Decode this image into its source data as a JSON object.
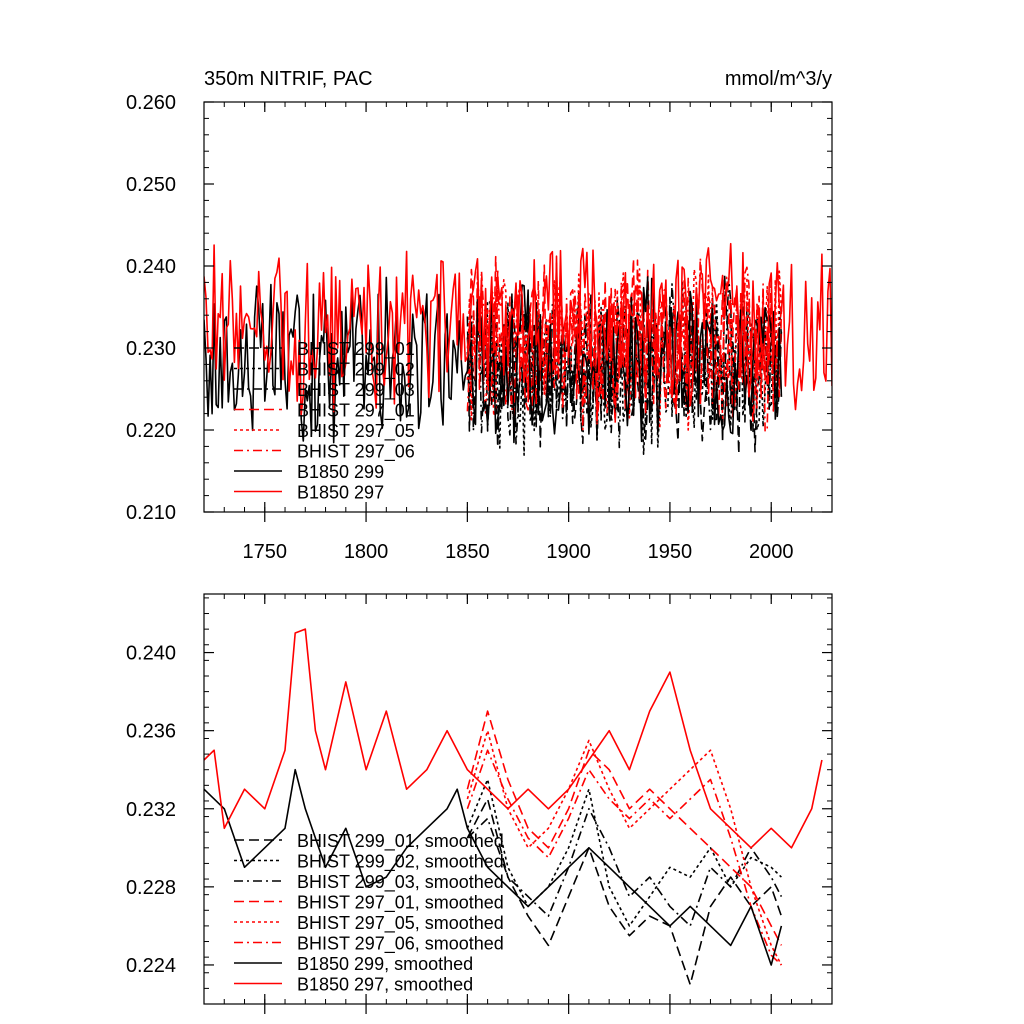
{
  "chart_data": [
    {
      "type": "line",
      "title": "350m NITRIF, PAC",
      "units": "mmol/m^3/y",
      "xlim": [
        1720,
        2030
      ],
      "ylim": [
        0.21,
        0.26
      ],
      "xticks": [
        1750,
        1800,
        1850,
        1900,
        1950,
        2000
      ],
      "xtick_labels": [
        "1750",
        "1800",
        "1850",
        "1900",
        "1950",
        "2000"
      ],
      "yticks": [
        0.21,
        0.22,
        0.23,
        0.24,
        0.25,
        0.26
      ],
      "ytick_labels": [
        "0.210",
        "0.220",
        "0.230",
        "0.240",
        "0.250",
        "0.260"
      ],
      "legend_position": "lower-left",
      "series": [
        {
          "name": "BHIST 299_01",
          "color": "#000000",
          "dash": "long-dash",
          "start": 1850,
          "end": 2005,
          "mean": 0.228,
          "amp": 0.0085,
          "seed": 11
        },
        {
          "name": "BHIST 299_02",
          "color": "#000000",
          "dash": "dot",
          "start": 1850,
          "end": 2005,
          "mean": 0.2275,
          "amp": 0.0085,
          "seed": 12
        },
        {
          "name": "BHIST 299_03",
          "color": "#000000",
          "dash": "dash-dot",
          "start": 1850,
          "end": 2005,
          "mean": 0.228,
          "amp": 0.0085,
          "seed": 13
        },
        {
          "name": "BHIST 297_01",
          "color": "#ff0000",
          "dash": "long-dash",
          "start": 1850,
          "end": 2005,
          "mean": 0.2305,
          "amp": 0.0085,
          "seed": 14
        },
        {
          "name": "BHIST 297_05",
          "color": "#ff0000",
          "dash": "dot",
          "start": 1850,
          "end": 2005,
          "mean": 0.2305,
          "amp": 0.0085,
          "seed": 15
        },
        {
          "name": "BHIST 297_06",
          "color": "#ff0000",
          "dash": "dash-dot",
          "start": 1850,
          "end": 2005,
          "mean": 0.2305,
          "amp": 0.0085,
          "seed": 16
        },
        {
          "name": "B1850 299",
          "color": "#000000",
          "dash": "solid",
          "start": 1720,
          "end": 2005,
          "mean": 0.2285,
          "amp": 0.0085,
          "seed": 17
        },
        {
          "name": "B1850 297",
          "color": "#ff0000",
          "dash": "solid",
          "start": 1720,
          "end": 2030,
          "mean": 0.2325,
          "amp": 0.0085,
          "seed": 18
        }
      ]
    },
    {
      "type": "line",
      "title": "",
      "xlim": [
        1720,
        2030
      ],
      "ylim": [
        0.222,
        0.243
      ],
      "yticks": [
        0.224,
        0.228,
        0.232,
        0.236,
        0.24
      ],
      "ytick_labels": [
        "0.224",
        "0.228",
        "0.232",
        "0.236",
        "0.240"
      ],
      "legend_position": "lower-left",
      "series": [
        {
          "name": "BHIST 299_01, smoothed",
          "color": "#000000",
          "dash": "long-dash",
          "x": [
            1850,
            1860,
            1870,
            1880,
            1890,
            1900,
            1910,
            1920,
            1930,
            1940,
            1950,
            1960,
            1970,
            1980,
            1990,
            2000,
            2005
          ],
          "y": [
            0.2305,
            0.2325,
            0.2285,
            0.2265,
            0.225,
            0.2275,
            0.23,
            0.227,
            0.2255,
            0.2265,
            0.226,
            0.223,
            0.227,
            0.2285,
            0.227,
            0.228,
            0.2265
          ]
        },
        {
          "name": "BHIST 299_02, smoothed",
          "color": "#000000",
          "dash": "dot",
          "x": [
            1850,
            1860,
            1870,
            1880,
            1890,
            1900,
            1910,
            1920,
            1930,
            1940,
            1950,
            1960,
            1970,
            1980,
            1990,
            2000,
            2005
          ],
          "y": [
            0.231,
            0.2335,
            0.229,
            0.227,
            0.228,
            0.23,
            0.233,
            0.228,
            0.226,
            0.2275,
            0.229,
            0.2285,
            0.23,
            0.228,
            0.2295,
            0.229,
            0.2285
          ]
        },
        {
          "name": "BHIST 299_03, smoothed",
          "color": "#000000",
          "dash": "dash-dot",
          "x": [
            1850,
            1860,
            1870,
            1880,
            1890,
            1900,
            1910,
            1920,
            1930,
            1940,
            1950,
            1960,
            1970,
            1980,
            1990,
            2000,
            2005
          ],
          "y": [
            0.2305,
            0.2315,
            0.2285,
            0.2275,
            0.2265,
            0.229,
            0.232,
            0.23,
            0.2275,
            0.2285,
            0.227,
            0.226,
            0.229,
            0.228,
            0.23,
            0.2285,
            0.2275
          ]
        },
        {
          "name": "BHIST 297_01, smoothed",
          "color": "#ff0000",
          "dash": "long-dash",
          "x": [
            1850,
            1860,
            1870,
            1880,
            1890,
            1900,
            1910,
            1920,
            1930,
            1940,
            1950,
            1960,
            1970,
            1980,
            1990,
            2000,
            2005
          ],
          "y": [
            0.233,
            0.237,
            0.2335,
            0.231,
            0.23,
            0.232,
            0.235,
            0.234,
            0.232,
            0.233,
            0.232,
            0.231,
            0.23,
            0.229,
            0.228,
            0.226,
            0.225
          ]
        },
        {
          "name": "BHIST 297_05, smoothed",
          "color": "#ff0000",
          "dash": "dot",
          "x": [
            1850,
            1860,
            1870,
            1880,
            1890,
            1900,
            1910,
            1920,
            1930,
            1940,
            1950,
            1960,
            1970,
            1980,
            1990,
            2000,
            2005
          ],
          "y": [
            0.2325,
            0.236,
            0.232,
            0.23,
            0.231,
            0.233,
            0.2355,
            0.233,
            0.231,
            0.232,
            0.233,
            0.234,
            0.235,
            0.232,
            0.228,
            0.225,
            0.224
          ]
        },
        {
          "name": "BHIST 297_06, smoothed",
          "color": "#ff0000",
          "dash": "dash-dot",
          "x": [
            1850,
            1860,
            1870,
            1880,
            1890,
            1900,
            1910,
            1920,
            1930,
            1940,
            1950,
            1960,
            1970,
            1980,
            1990,
            2000,
            2005
          ],
          "y": [
            0.232,
            0.235,
            0.2325,
            0.2305,
            0.2295,
            0.2315,
            0.234,
            0.2325,
            0.2315,
            0.2325,
            0.2315,
            0.2325,
            0.2335,
            0.2305,
            0.227,
            0.2245,
            0.224
          ]
        },
        {
          "name": "B1850 299, smoothed",
          "color": "#000000",
          "dash": "solid",
          "x": [
            1720,
            1730,
            1740,
            1750,
            1760,
            1765,
            1770,
            1780,
            1790,
            1800,
            1810,
            1820,
            1830,
            1840,
            1845,
            1850,
            1860,
            1870,
            1880,
            1890,
            1900,
            1910,
            1920,
            1930,
            1940,
            1950,
            1960,
            1970,
            1980,
            1990,
            2000,
            2005
          ],
          "y": [
            0.233,
            0.232,
            0.229,
            0.23,
            0.231,
            0.234,
            0.232,
            0.229,
            0.231,
            0.228,
            0.2285,
            0.23,
            0.231,
            0.232,
            0.233,
            0.231,
            0.229,
            0.228,
            0.227,
            0.228,
            0.229,
            0.23,
            0.229,
            0.228,
            0.227,
            0.226,
            0.227,
            0.226,
            0.225,
            0.227,
            0.224,
            0.226
          ]
        },
        {
          "name": "B1850 297, smoothed",
          "color": "#ff0000",
          "dash": "solid",
          "x": [
            1720,
            1725,
            1730,
            1735,
            1740,
            1750,
            1760,
            1765,
            1770,
            1775,
            1780,
            1790,
            1800,
            1810,
            1820,
            1830,
            1840,
            1850,
            1860,
            1870,
            1880,
            1890,
            1900,
            1910,
            1920,
            1930,
            1940,
            1950,
            1960,
            1970,
            1980,
            1990,
            2000,
            2010,
            2020,
            2025
          ],
          "y": [
            0.2345,
            0.235,
            0.231,
            0.232,
            0.233,
            0.232,
            0.235,
            0.241,
            0.2412,
            0.236,
            0.234,
            0.2385,
            0.234,
            0.237,
            0.233,
            0.234,
            0.236,
            0.234,
            0.233,
            0.232,
            0.233,
            0.232,
            0.233,
            0.2345,
            0.236,
            0.234,
            0.237,
            0.239,
            0.235,
            0.232,
            0.231,
            0.23,
            0.231,
            0.23,
            0.232,
            0.2345
          ]
        }
      ]
    }
  ]
}
